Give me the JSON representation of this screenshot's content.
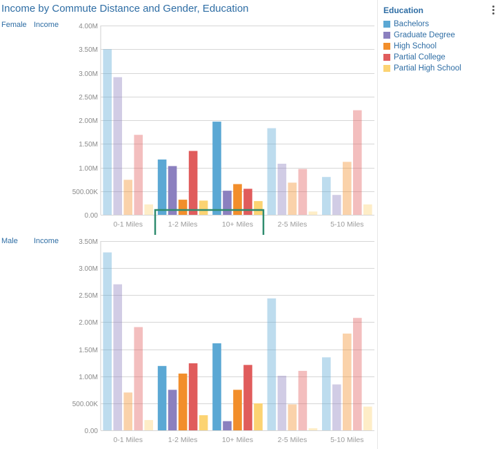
{
  "title": "Income by Commute Distance and Gender, Education",
  "legend": {
    "title": "Education",
    "items": [
      {
        "label": "Bachelors",
        "color": "#5ba8d4"
      },
      {
        "label": "Graduate Degree",
        "color": "#8b80bf"
      },
      {
        "label": "High School",
        "color": "#f28e2b"
      },
      {
        "label": "Partial College",
        "color": "#e05c5c"
      },
      {
        "label": "Partial High School",
        "color": "#fcd372"
      }
    ]
  },
  "chart_data": [
    {
      "type": "bar",
      "row_label": "Female",
      "measure_label": "Income",
      "categories": [
        "0-1 Miles",
        "1-2 Miles",
        "10+ Miles",
        "2-5 Miles",
        "5-10 Miles"
      ],
      "highlighted_categories": [
        "1-2 Miles",
        "10+ Miles"
      ],
      "ylim": [
        0,
        4000000
      ],
      "yticks": [
        0,
        500000,
        1000000,
        1500000,
        2000000,
        2500000,
        3000000,
        3500000,
        4000000
      ],
      "ytick_labels": [
        "0.00",
        "500.00K",
        "1.00M",
        "1.50M",
        "2.00M",
        "2.50M",
        "3.00M",
        "3.50M",
        "4.00M"
      ],
      "grid": true,
      "series": [
        {
          "name": "Bachelors",
          "values": [
            3500000,
            1170000,
            1970000,
            1830000,
            800000
          ]
        },
        {
          "name": "Graduate Degree",
          "values": [
            2910000,
            1030000,
            510000,
            1080000,
            420000
          ]
        },
        {
          "name": "High School",
          "values": [
            740000,
            320000,
            650000,
            680000,
            1120000
          ]
        },
        {
          "name": "Partial College",
          "values": [
            1690000,
            1350000,
            550000,
            970000,
            2210000
          ]
        },
        {
          "name": "Partial High School",
          "values": [
            220000,
            300000,
            290000,
            70000,
            220000
          ]
        }
      ]
    },
    {
      "type": "bar",
      "row_label": "Male",
      "measure_label": "Income",
      "categories": [
        "0-1 Miles",
        "1-2 Miles",
        "10+ Miles",
        "2-5 Miles",
        "5-10 Miles"
      ],
      "highlighted_categories": [
        "1-2 Miles",
        "10+ Miles"
      ],
      "ylim": [
        0,
        3500000
      ],
      "yticks": [
        0,
        500000,
        1000000,
        1500000,
        2000000,
        2500000,
        3000000,
        3500000
      ],
      "ytick_labels": [
        "0.00",
        "500.00K",
        "1.00M",
        "1.50M",
        "2.00M",
        "2.50M",
        "3.00M",
        "3.50M"
      ],
      "grid": true,
      "series": [
        {
          "name": "Bachelors",
          "values": [
            3290000,
            1190000,
            1610000,
            2440000,
            1350000
          ]
        },
        {
          "name": "Graduate Degree",
          "values": [
            2700000,
            750000,
            170000,
            1010000,
            850000
          ]
        },
        {
          "name": "High School",
          "values": [
            700000,
            1050000,
            750000,
            480000,
            1790000
          ]
        },
        {
          "name": "Partial College",
          "values": [
            1910000,
            1240000,
            1210000,
            1100000,
            2080000
          ]
        },
        {
          "name": "Partial High School",
          "values": [
            190000,
            280000,
            500000,
            40000,
            440000
          ]
        }
      ]
    }
  ]
}
